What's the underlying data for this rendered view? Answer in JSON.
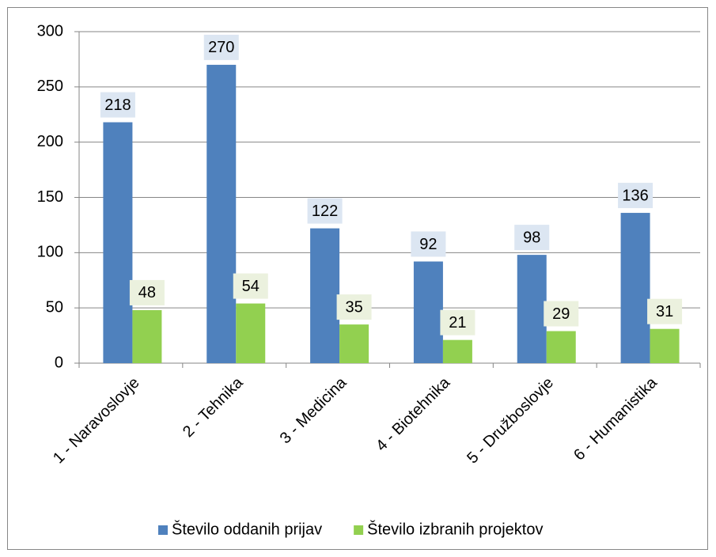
{
  "chart_data": {
    "type": "bar",
    "categories": [
      "1 - Naravoslovje",
      "2 - Tehnika",
      "3 - Medicina",
      "4 - Biotehnika",
      "5 - Družboslovje",
      "6 - Humanistika"
    ],
    "series": [
      {
        "name": "Število oddanih prijav",
        "color": "#4f81bd",
        "label_bg": "#dce6f2",
        "values": [
          218,
          270,
          122,
          92,
          98,
          136
        ]
      },
      {
        "name": "Število izbranih projektov",
        "color": "#92d050",
        "label_bg": "#ebf1de",
        "values": [
          48,
          54,
          35,
          21,
          29,
          31
        ]
      }
    ],
    "ylim": [
      0,
      300
    ],
    "yticks": [
      0,
      50,
      100,
      150,
      200,
      250,
      300
    ],
    "grid": true,
    "legend": "bottom"
  }
}
